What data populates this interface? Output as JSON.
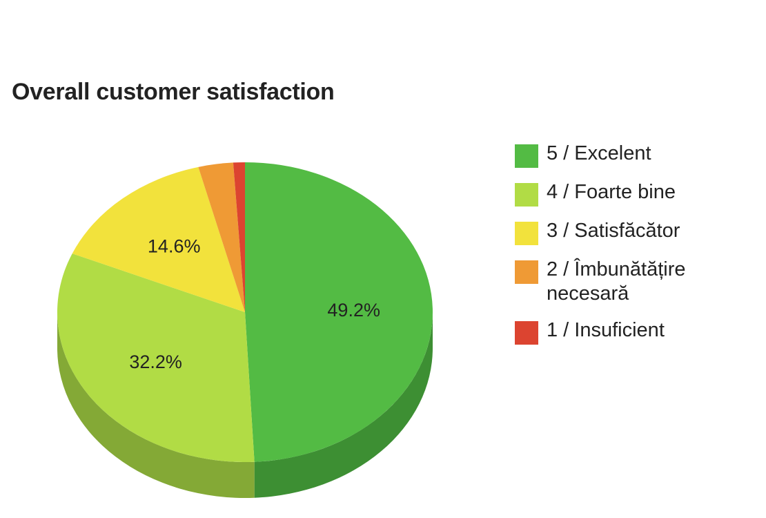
{
  "chart_data": {
    "type": "pie",
    "title": "Overall customer satisfaction",
    "is_3d": true,
    "legend_position": "right",
    "categories": [
      "5 / Excelent",
      "4 / Foarte bine",
      "3 / Satisfăcător",
      "2 / Îmbunătățire necesară",
      "1 / Insuficient"
    ],
    "values": [
      49.2,
      32.2,
      14.6,
      3.0,
      1.0
    ],
    "labels": [
      "49.2%",
      "32.2%",
      "14.6%",
      "",
      ""
    ],
    "colors": [
      "#53bb44",
      "#b1dc45",
      "#f2e23c",
      "#ef9a35",
      "#dc4430"
    ],
    "side_colors": [
      "#3d8f33",
      "#84a936",
      "#bcae2e",
      "#b77428",
      "#a83325"
    ]
  }
}
